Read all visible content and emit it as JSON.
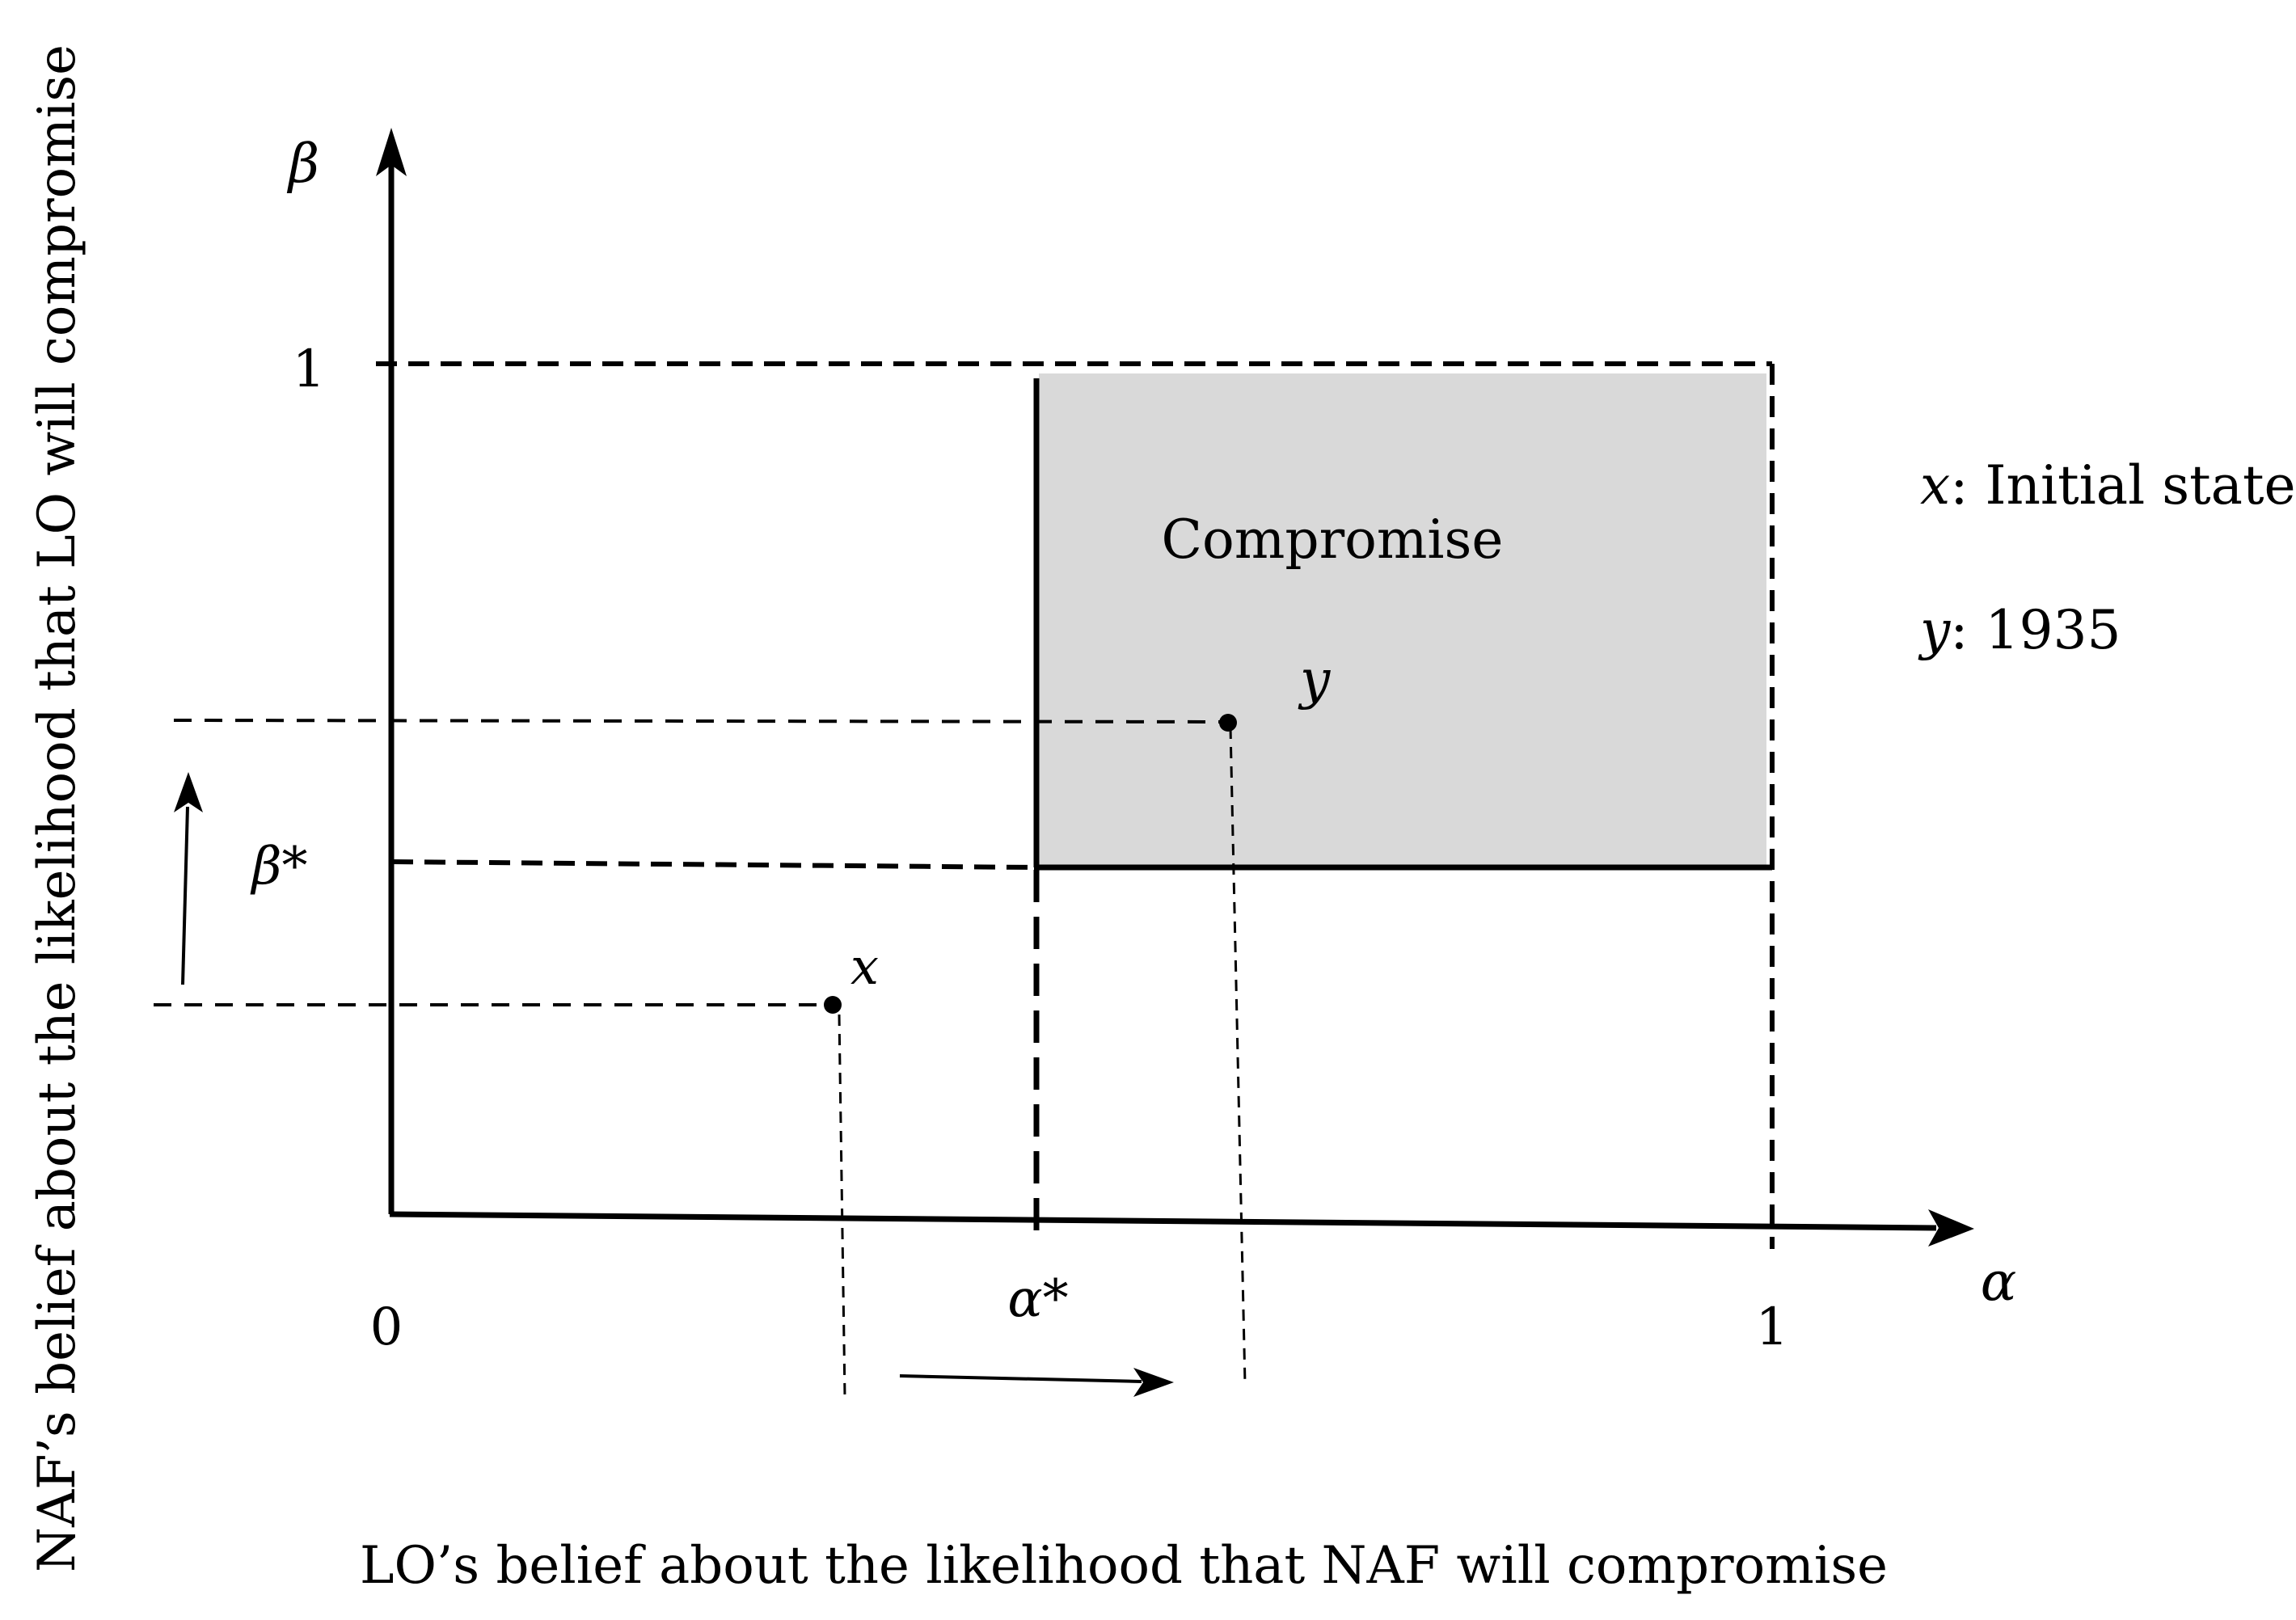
{
  "axes": {
    "x_label": "LO’s belief about the likelihood that NAF will compromise",
    "y_label": "NAF’s belief about the likelihood that LO will compromise",
    "x_symbol": "α",
    "y_symbol": "β",
    "origin_tick": "0",
    "x_max_tick": "1",
    "y_max_tick": "1",
    "x_threshold_tick": "α*",
    "y_threshold_tick": "β*"
  },
  "region": {
    "label": "Compromise",
    "fill_color": "#d9d9d9"
  },
  "points": {
    "x": {
      "label": "x"
    },
    "y": {
      "label": "y"
    }
  },
  "legend": {
    "x": {
      "symbol": "x",
      "text": ": Initial state"
    },
    "y": {
      "symbol": "y",
      "text": ": 1935"
    }
  }
}
